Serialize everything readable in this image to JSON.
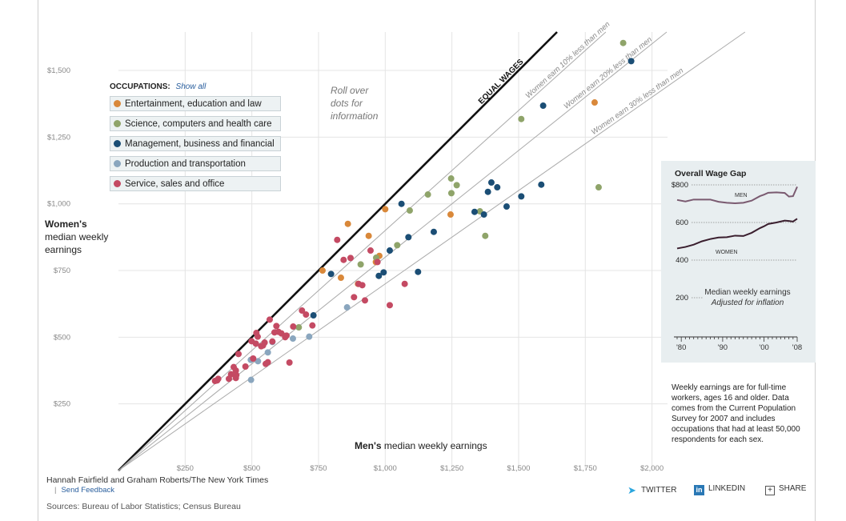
{
  "chart_data": {
    "type": "scatter",
    "title": "",
    "xlabel_bold": "Men's",
    "xlabel_rest": " median weekly earnings",
    "ylabel_bold": "Women's",
    "ylabel_rest": [
      "median weekly",
      "earnings"
    ],
    "xlim": [
      0,
      2000
    ],
    "ylim": [
      0,
      1600
    ],
    "x_ticks": [
      {
        "v": 250,
        "label": "$250"
      },
      {
        "v": 500,
        "label": "$500"
      },
      {
        "v": 750,
        "label": "$750"
      },
      {
        "v": 1000,
        "label": "$1,000"
      },
      {
        "v": 1250,
        "label": "$1,250"
      },
      {
        "v": 1500,
        "label": "$1,500"
      },
      {
        "v": 1750,
        "label": "$1,750"
      },
      {
        "v": 2000,
        "label": "$2,000"
      }
    ],
    "y_ticks": [
      {
        "v": 250,
        "label": "$250"
      },
      {
        "v": 500,
        "label": "$500"
      },
      {
        "v": 750,
        "label": "$750"
      },
      {
        "v": 1000,
        "label": "$1,000"
      },
      {
        "v": 1250,
        "label": "$1,250"
      },
      {
        "v": 1500,
        "label": "$1,500"
      }
    ],
    "grid": true,
    "reference_lines": [
      {
        "ratio": 1.0,
        "label": "EQUAL WAGES",
        "bold": true
      },
      {
        "ratio": 0.9,
        "label": "Women earn 10% less than men"
      },
      {
        "ratio": 0.8,
        "label": "Women earn 20% less than men"
      },
      {
        "ratio": 0.7,
        "label": "Women earn 30% less than men"
      }
    ],
    "series": [
      {
        "name": "Entertainment, education and law",
        "color": "#d9883a",
        "points": [
          [
            765,
            750
          ],
          [
            860,
            925
          ],
          [
            834,
            723
          ],
          [
            898,
            700
          ],
          [
            938,
            880
          ],
          [
            965,
            782
          ],
          [
            978,
            805
          ],
          [
            1000,
            980
          ],
          [
            1245,
            960
          ],
          [
            1785,
            1380
          ]
        ]
      },
      {
        "name": "Science, computers and health care",
        "color": "#8fa46a",
        "points": [
          [
            676,
            537
          ],
          [
            966,
            798
          ],
          [
            908,
            773
          ],
          [
            1045,
            845
          ],
          [
            1092,
            975
          ],
          [
            1160,
            1035
          ],
          [
            1248,
            1040
          ],
          [
            1247,
            1095
          ],
          [
            1268,
            1070
          ],
          [
            1355,
            972
          ],
          [
            1375,
            880
          ],
          [
            1510,
            1318
          ],
          [
            1800,
            1062
          ],
          [
            1892,
            1603
          ]
        ]
      },
      {
        "name": "Management, business and financial",
        "color": "#1b4e75",
        "points": [
          [
            731,
            582
          ],
          [
            797,
            737
          ],
          [
            976,
            730
          ],
          [
            994,
            743
          ],
          [
            1017,
            825
          ],
          [
            1061,
            1000
          ],
          [
            1087,
            875
          ],
          [
            1123,
            745
          ],
          [
            1182,
            895
          ],
          [
            1335,
            970
          ],
          [
            1370,
            960
          ],
          [
            1385,
            1045
          ],
          [
            1398,
            1080
          ],
          [
            1420,
            1062
          ],
          [
            1455,
            990
          ],
          [
            1510,
            1028
          ],
          [
            1585,
            1072
          ],
          [
            1592,
            1368
          ],
          [
            1922,
            1535
          ]
        ]
      },
      {
        "name": "Production and transportation",
        "color": "#8aa6be",
        "points": [
          [
            497,
            340
          ],
          [
            496,
            415
          ],
          [
            523,
            410
          ],
          [
            560,
            443
          ],
          [
            577,
            482
          ],
          [
            654,
            495
          ],
          [
            715,
            502
          ],
          [
            857,
            612
          ]
        ]
      },
      {
        "name": "Service, sales and office",
        "color": "#c44a63",
        "points": [
          [
            362,
            336
          ],
          [
            370,
            338
          ],
          [
            374,
            344
          ],
          [
            414,
            344
          ],
          [
            422,
            361
          ],
          [
            432,
            388
          ],
          [
            440,
            375
          ],
          [
            442,
            358
          ],
          [
            440,
            347
          ],
          [
            450,
            437
          ],
          [
            476,
            390
          ],
          [
            505,
            420
          ],
          [
            499,
            485
          ],
          [
            517,
            516
          ],
          [
            515,
            476
          ],
          [
            522,
            502
          ],
          [
            535,
            466
          ],
          [
            548,
            480
          ],
          [
            542,
            469
          ],
          [
            552,
            400
          ],
          [
            560,
            406
          ],
          [
            567,
            566
          ],
          [
            577,
            484
          ],
          [
            585,
            518
          ],
          [
            592,
            542
          ],
          [
            600,
            520
          ],
          [
            611,
            514
          ],
          [
            630,
            506
          ],
          [
            625,
            500
          ],
          [
            641,
            405
          ],
          [
            655,
            540
          ],
          [
            688,
            600
          ],
          [
            703,
            585
          ],
          [
            727,
            544
          ],
          [
            820,
            865
          ],
          [
            844,
            790
          ],
          [
            870,
            797
          ],
          [
            883,
            650
          ],
          [
            900,
            700
          ],
          [
            914,
            695
          ],
          [
            924,
            638
          ],
          [
            945,
            825
          ],
          [
            971,
            782
          ],
          [
            1017,
            620
          ],
          [
            1073,
            700
          ]
        ]
      }
    ]
  },
  "legend": {
    "heading": "OCCUPATIONS:",
    "show_all": "Show all",
    "items": [
      {
        "label": "Entertainment, education and law",
        "color": "#d9883a"
      },
      {
        "label": "Science, computers and health care",
        "color": "#8fa46a"
      },
      {
        "label": "Management, business and financial",
        "color": "#1b4e75"
      },
      {
        "label": "Production and transportation",
        "color": "#8aa6be"
      },
      {
        "label": "Service, sales and office",
        "color": "#c44a63"
      }
    ]
  },
  "rollover_note": [
    "Roll over",
    "dots for",
    "information"
  ],
  "inset": {
    "title": "Overall Wage Gap",
    "y_ticks": [
      {
        "v": 800,
        "label": "$800"
      },
      {
        "v": 600,
        "label": "600"
      },
      {
        "v": 400,
        "label": "400"
      },
      {
        "v": 200,
        "label": "200"
      }
    ],
    "x_ticks": [
      {
        "v": 1980,
        "label": "'80"
      },
      {
        "v": 1990,
        "label": "'90"
      },
      {
        "v": 2000,
        "label": "'00"
      },
      {
        "v": 2008,
        "label": "'08"
      }
    ],
    "xlim": [
      1979,
      2008
    ],
    "ylim": [
      200,
      800
    ],
    "caption_line1": "Median weekly earnings",
    "caption_line2": "Adjusted for inflation",
    "men": {
      "label": "MEN",
      "years": [
        1979,
        1981,
        1983,
        1985,
        1987,
        1989,
        1991,
        1993,
        1995,
        1997,
        1999,
        2000,
        2001,
        2003,
        2005,
        2006,
        2007,
        2008
      ],
      "values": [
        720,
        712,
        722,
        722,
        722,
        710,
        705,
        702,
        705,
        716,
        740,
        748,
        758,
        760,
        757,
        738,
        740,
        790
      ]
    },
    "women": {
      "label": "WOMEN",
      "years": [
        1979,
        1981,
        1983,
        1985,
        1987,
        1989,
        1991,
        1993,
        1995,
        1997,
        1999,
        2000,
        2001,
        2003,
        2005,
        2006,
        2007,
        2008
      ],
      "values": [
        462,
        470,
        482,
        500,
        512,
        520,
        522,
        530,
        528,
        545,
        570,
        580,
        592,
        600,
        610,
        608,
        605,
        620
      ]
    }
  },
  "note": "Weekly earnings are for full-time workers, ages 16 and older. Data comes from the Current Population Survey for 2007 and includes occupations that had at least 50,000 respondents for each sex.",
  "credit": "Hannah Fairfield and Graham Roberts/The New York Times",
  "feedback_bar": "|",
  "feedback": "Send Feedback",
  "sources": "Sources: Bureau of Labor Statistics; Census Bureau",
  "share": {
    "twitter": "TWITTER",
    "linkedin": "LINKEDIN",
    "share": "SHARE",
    "linkedin_icon_text": "in",
    "share_icon_text": "+"
  }
}
